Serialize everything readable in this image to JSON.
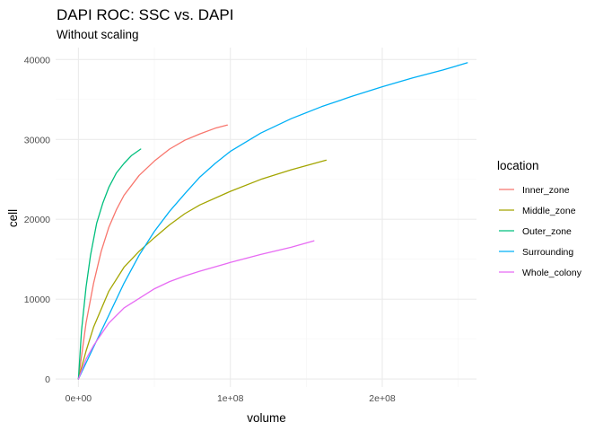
{
  "chart_data": {
    "type": "line",
    "title": "DAPI ROC: SSC vs. DAPI",
    "subtitle": "Without scaling",
    "xlabel": "volume",
    "ylabel": "cell",
    "xlim": [
      -15000000,
      262000000
    ],
    "ylim": [
      -1000,
      41500
    ],
    "x_ticks": [
      0,
      100000000,
      200000000
    ],
    "x_tick_labels": [
      "0e+00",
      "1e+08",
      "2e+08"
    ],
    "y_ticks": [
      0,
      10000,
      20000,
      30000,
      40000
    ],
    "y_tick_labels": [
      "0",
      "10000",
      "20000",
      "30000",
      "40000"
    ],
    "grid": true,
    "legend": {
      "title": "location",
      "position": "right"
    },
    "series": [
      {
        "name": "Inner_zone",
        "color": "#F8766D",
        "x": [
          0,
          5000000,
          10000000,
          15000000,
          20000000,
          25000000,
          30000000,
          40000000,
          50000000,
          60000000,
          70000000,
          80000000,
          90000000,
          98000000
        ],
        "y": [
          0,
          7000,
          12000,
          16000,
          19000,
          21200,
          23000,
          25500,
          27300,
          28800,
          29900,
          30700,
          31400,
          31800
        ]
      },
      {
        "name": "Middle_zone",
        "color": "#A3A500",
        "x": [
          0,
          5000000,
          10000000,
          20000000,
          30000000,
          40000000,
          50000000,
          60000000,
          70000000,
          80000000,
          100000000,
          120000000,
          140000000,
          163000000
        ],
        "y": [
          0,
          3500,
          6500,
          11000,
          14000,
          16000,
          17700,
          19300,
          20700,
          21800,
          23500,
          25000,
          26200,
          27400
        ]
      },
      {
        "name": "Outer_zone",
        "color": "#00BF7D",
        "x": [
          0,
          2000000,
          5000000,
          8000000,
          12000000,
          16000000,
          20000000,
          25000000,
          30000000,
          35000000,
          41000000
        ],
        "y": [
          0,
          6000,
          11500,
          15500,
          19500,
          22000,
          24000,
          25800,
          27000,
          28000,
          28800
        ]
      },
      {
        "name": "Surrounding",
        "color": "#00B0F6",
        "x": [
          0,
          10000000,
          20000000,
          30000000,
          40000000,
          50000000,
          60000000,
          70000000,
          80000000,
          90000000,
          100000000,
          120000000,
          140000000,
          160000000,
          180000000,
          200000000,
          220000000,
          240000000,
          256000000
        ],
        "y": [
          0,
          4000,
          8000,
          12000,
          15500,
          18500,
          21000,
          23200,
          25300,
          27000,
          28500,
          30800,
          32600,
          34100,
          35400,
          36600,
          37700,
          38700,
          39600
        ]
      },
      {
        "name": "Whole_colony",
        "color": "#E76BF3",
        "x": [
          0,
          5000000,
          10000000,
          20000000,
          30000000,
          40000000,
          50000000,
          60000000,
          70000000,
          80000000,
          100000000,
          120000000,
          140000000,
          155000000
        ],
        "y": [
          0,
          2500,
          4200,
          7000,
          8900,
          10100,
          11300,
          12200,
          12900,
          13500,
          14600,
          15600,
          16500,
          17300
        ]
      }
    ]
  }
}
